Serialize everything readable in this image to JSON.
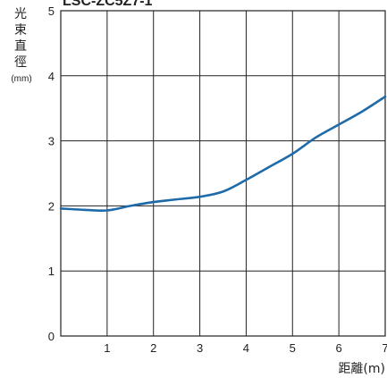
{
  "chart_data": {
    "type": "line",
    "title_partial": "LSC-ZC5Z7-1",
    "ylabel_chars": [
      "光",
      "束",
      "直",
      "徑"
    ],
    "yunit": "(mm)",
    "xlabel": "距離(m)",
    "xlim": [
      0,
      7
    ],
    "ylim": [
      0,
      5
    ],
    "x_ticks": [
      1,
      2,
      3,
      4,
      5,
      6,
      7
    ],
    "y_ticks": [
      0,
      1,
      2,
      3,
      4,
      5
    ],
    "grid": true,
    "series": [
      {
        "color": "#1f6aa8",
        "x": [
          0,
          0.5,
          1.0,
          1.5,
          2.0,
          2.5,
          3.0,
          3.5,
          4.0,
          4.5,
          5.0,
          5.5,
          6.0,
          6.5,
          7.0
        ],
        "y": [
          1.96,
          1.94,
          1.93,
          2.0,
          2.06,
          2.1,
          2.14,
          2.22,
          2.4,
          2.6,
          2.8,
          3.05,
          3.25,
          3.45,
          3.68
        ]
      }
    ]
  }
}
